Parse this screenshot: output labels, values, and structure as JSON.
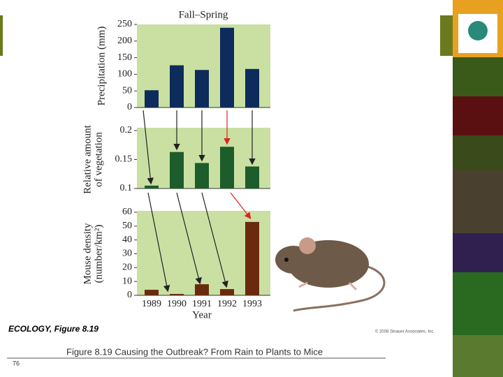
{
  "chart_data": [
    {
      "type": "bar",
      "title": "Fall–Spring",
      "ylabel": [
        "Precipitation (mm)"
      ],
      "values": [
        52,
        127,
        113,
        240,
        116
      ],
      "color": "#0d2c5c",
      "ylim": [
        0,
        250
      ],
      "yticks": [
        0,
        50,
        100,
        150,
        200,
        250
      ]
    },
    {
      "type": "bar",
      "ylabel": [
        "Relative amount",
        "of vegetation"
      ],
      "values": [
        0.105,
        0.163,
        0.144,
        0.172,
        0.138
      ],
      "color": "#1d5c2b",
      "ylim": [
        0.1,
        0.2
      ],
      "yticks": [
        0.1,
        0.15,
        0.2
      ]
    },
    {
      "type": "bar",
      "ylabel": [
        "Mouse density",
        "(number/km²)"
      ],
      "xlabel": "Year",
      "categories": [
        "1989",
        "1990",
        "1991",
        "1992",
        "1993"
      ],
      "values": [
        4,
        1,
        8,
        4.5,
        53
      ],
      "color": "#6a2a10",
      "ylim": [
        0,
        60
      ],
      "yticks": [
        0,
        10,
        20,
        30,
        40,
        50,
        60
      ]
    }
  ],
  "credit": "ECOLOGY, Figure 8.19",
  "copyright": "© 2008 Sinauer Associates, Inc.",
  "caption": "Figure 8.19 Causing the Outbreak? From Rain to Plants to Mice",
  "page_number": "76"
}
